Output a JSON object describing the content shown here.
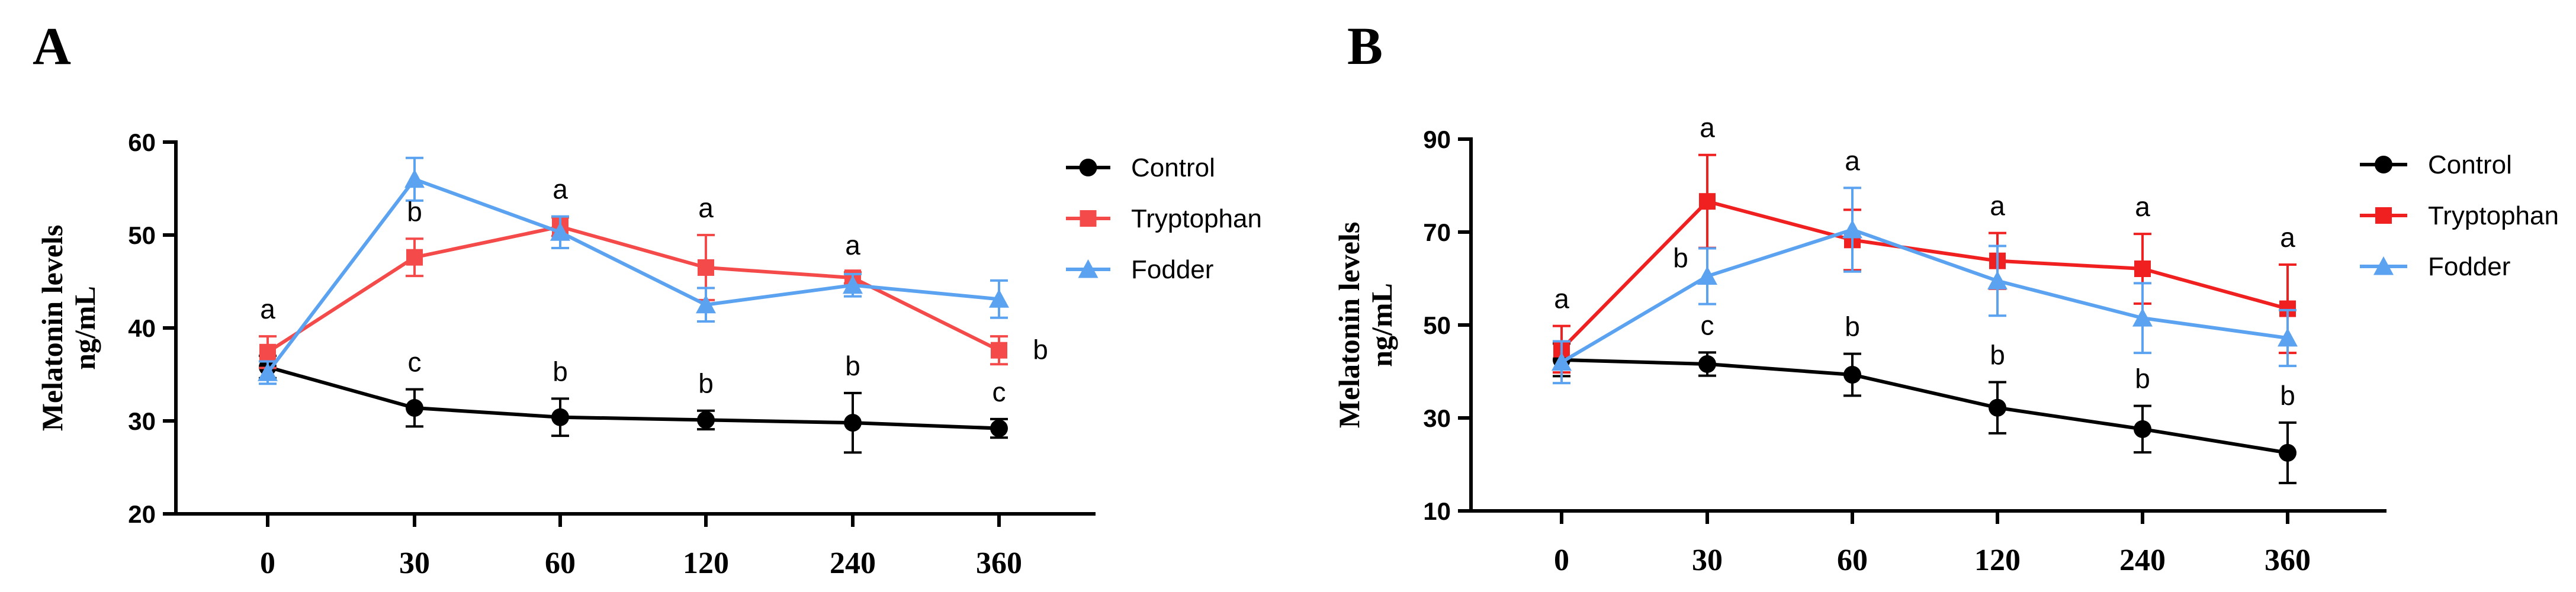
{
  "chart_data": [
    {
      "panel": "A",
      "type": "line",
      "title": "",
      "xlabel": "",
      "ylabel": [
        "Melatonin levels",
        "ng/mL"
      ],
      "categories": [
        "0",
        "30",
        "60",
        "120",
        "240",
        "360"
      ],
      "ylim": [
        20,
        60
      ],
      "yticks": [
        20,
        30,
        40,
        50,
        60
      ],
      "legend_position": "top-right",
      "series": [
        {
          "name": "Control",
          "color": "#000000",
          "marker": "circle",
          "values": [
            35.8,
            31.4,
            30.4,
            30.1,
            29.8,
            29.2
          ],
          "errors": [
            1.2,
            2.0,
            2.0,
            1.0,
            3.2,
            1.0
          ],
          "labels": [
            "",
            "c",
            "b",
            "b",
            "b",
            "c"
          ]
        },
        {
          "name": "Tryptophan",
          "color": "#f44a4a",
          "marker": "square",
          "values": [
            37.4,
            47.6,
            50.9,
            46.5,
            45.4,
            37.6
          ],
          "errors": [
            1.7,
            2.0,
            1.0,
            3.5,
            0.6,
            1.5
          ],
          "labels": [
            "a",
            "b",
            "a",
            "a",
            "a",
            "b"
          ]
        },
        {
          "name": "Fodder",
          "color": "#5ba3f0",
          "marker": "triangle",
          "values": [
            35.2,
            56.0,
            50.3,
            42.5,
            44.6,
            43.1
          ],
          "errors": [
            1.2,
            2.3,
            1.7,
            1.8,
            1.2,
            2.0
          ],
          "labels": [
            "",
            "",
            "",
            "",
            "",
            ""
          ]
        }
      ]
    },
    {
      "panel": "B",
      "type": "line",
      "title": "",
      "xlabel": "",
      "ylabel": [
        "Melatonin levels",
        "ng/mL"
      ],
      "categories": [
        "0",
        "30",
        "60",
        "120",
        "240",
        "360"
      ],
      "ylim": [
        10,
        90
      ],
      "yticks": [
        10,
        30,
        50,
        70,
        90
      ],
      "legend_position": "top-right",
      "series": [
        {
          "name": "Control",
          "color": "#000000",
          "marker": "circle",
          "values": [
            42.5,
            41.6,
            39.3,
            32.2,
            27.6,
            22.5
          ],
          "errors": [
            3.5,
            2.5,
            4.5,
            5.5,
            5.0,
            6.5
          ],
          "labels": [
            "",
            "c",
            "b",
            "b",
            "b",
            "b"
          ]
        },
        {
          "name": "Tryptophan",
          "color": "#f02020",
          "marker": "square",
          "values": [
            44.8,
            76.6,
            68.3,
            63.8,
            62.1,
            53.5
          ],
          "errors": [
            5.0,
            10.0,
            6.5,
            6.0,
            7.5,
            9.5
          ],
          "labels": [
            "a",
            "a",
            "a",
            "a",
            "a",
            "a"
          ]
        },
        {
          "name": "Fodder",
          "color": "#5ba3f0",
          "marker": "triangle",
          "values": [
            42.0,
            60.5,
            70.5,
            59.5,
            51.5,
            47.2
          ],
          "errors": [
            4.5,
            6.0,
            9.0,
            7.5,
            7.5,
            6.0
          ],
          "labels": [
            "",
            "b",
            "",
            "",
            "",
            ""
          ]
        }
      ]
    }
  ]
}
